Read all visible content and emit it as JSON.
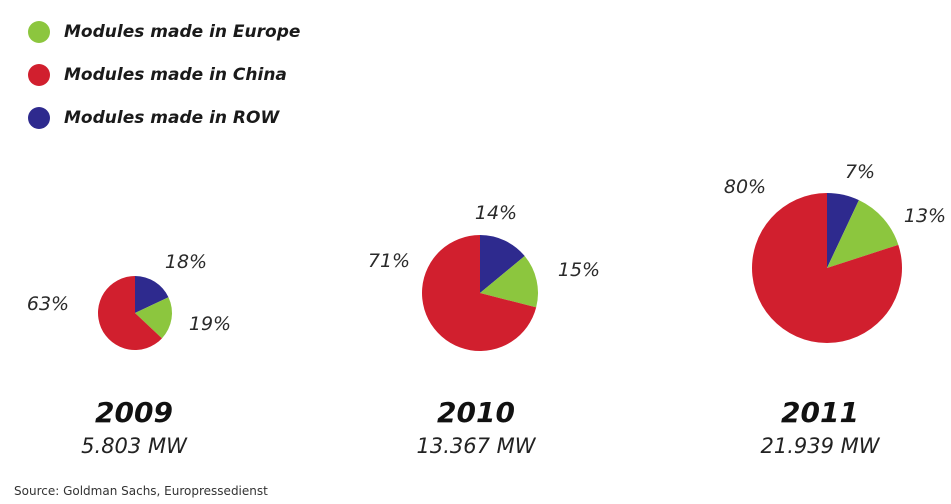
{
  "colors": {
    "europe": "#8cc63e",
    "china": "#d11f2e",
    "row": "#2e2a8e"
  },
  "legend": [
    {
      "label": "Modules made in Europe",
      "color": "#8cc63e"
    },
    {
      "label": "Modules made in China",
      "color": "#d11f2e"
    },
    {
      "label": "Modules made in ROW",
      "color": "#2e2a8e"
    }
  ],
  "chart_data": {
    "type": "pie",
    "series_names": [
      "Modules made in Europe",
      "Modules made in China",
      "Modules made in ROW"
    ],
    "pies": [
      {
        "year": "2009",
        "capacity": "5.803 MW",
        "capacity_mw": 5803,
        "values": {
          "europe": 19,
          "china": 63,
          "row": 18
        },
        "labels": {
          "europe": "19%",
          "china": "63%",
          "row": "18%"
        }
      },
      {
        "year": "2010",
        "capacity": "13.367 MW",
        "capacity_mw": 13367,
        "values": {
          "europe": 15,
          "china": 71,
          "row": 14
        },
        "labels": {
          "europe": "15%",
          "china": "71%",
          "row": "14%"
        }
      },
      {
        "year": "2011",
        "capacity": "21.939 MW",
        "capacity_mw": 21939,
        "values": {
          "europe": 13,
          "china": 80,
          "row": 7
        },
        "labels": {
          "europe": "13%",
          "china": "80%",
          "row": "7%"
        }
      }
    ]
  },
  "source": "Source: Goldman Sachs, Europressedienst"
}
